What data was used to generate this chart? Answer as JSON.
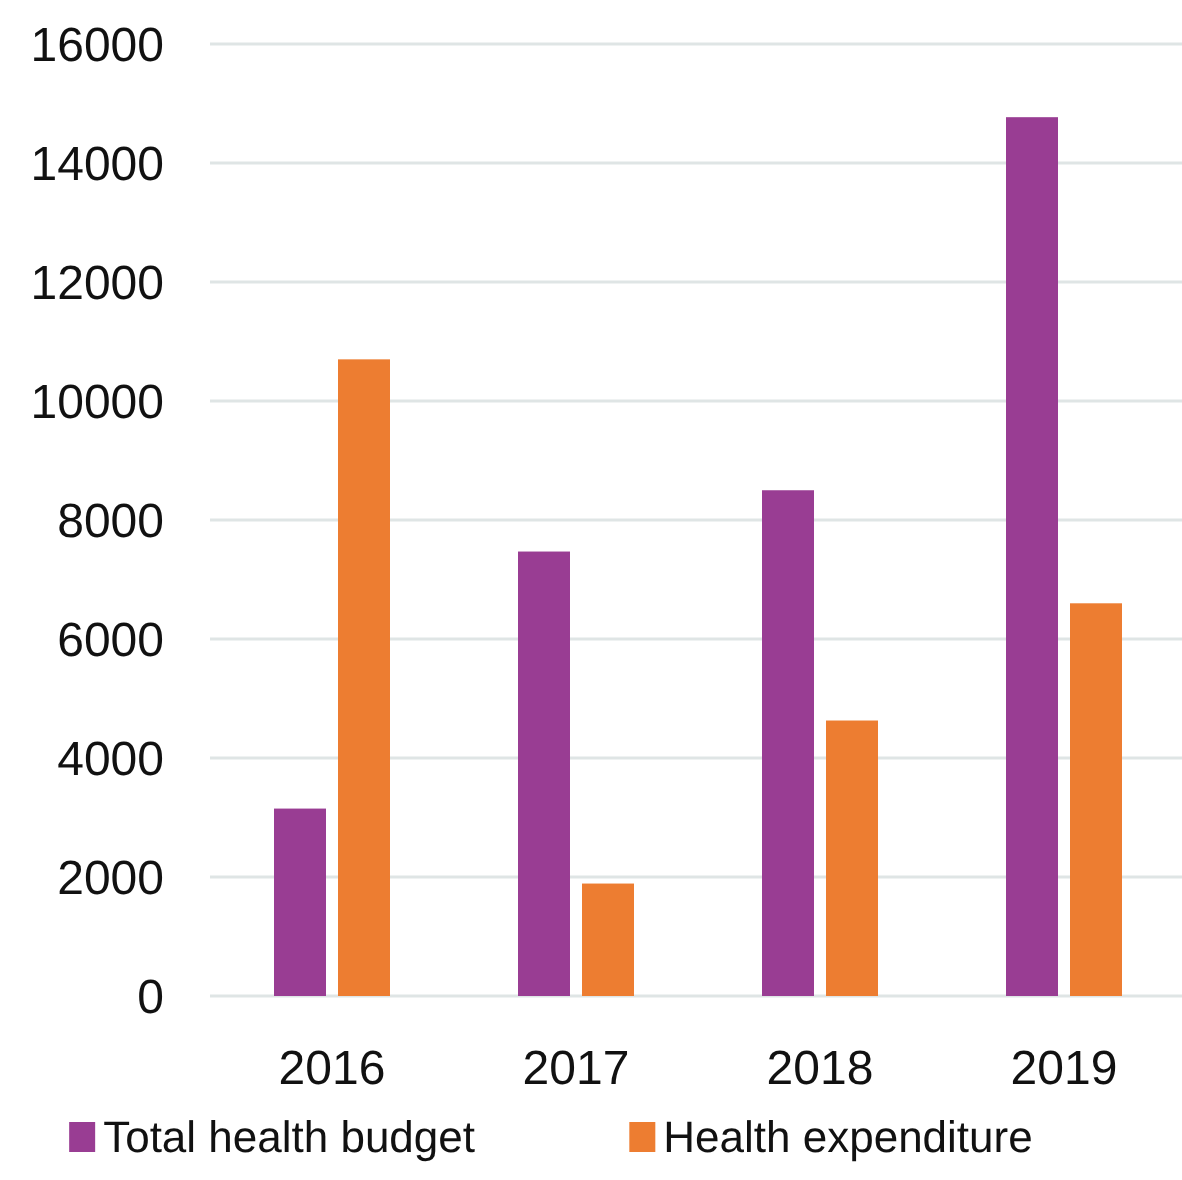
{
  "chart_data": {
    "type": "bar",
    "categories": [
      "2016",
      "2017",
      "2018",
      "2019"
    ],
    "series": [
      {
        "name": "Total health budget",
        "color": "#993d93",
        "values": [
          3150,
          7470,
          8500,
          14770
        ]
      },
      {
        "name": "Health expenditure",
        "color": "#ed7d31",
        "values": [
          10700,
          1890,
          4630,
          6600
        ]
      }
    ],
    "ylim": [
      0,
      16000
    ],
    "yticks": [
      0,
      2000,
      4000,
      6000,
      8000,
      10000,
      12000,
      14000,
      16000
    ],
    "grid": "y",
    "legend": "bottom"
  }
}
